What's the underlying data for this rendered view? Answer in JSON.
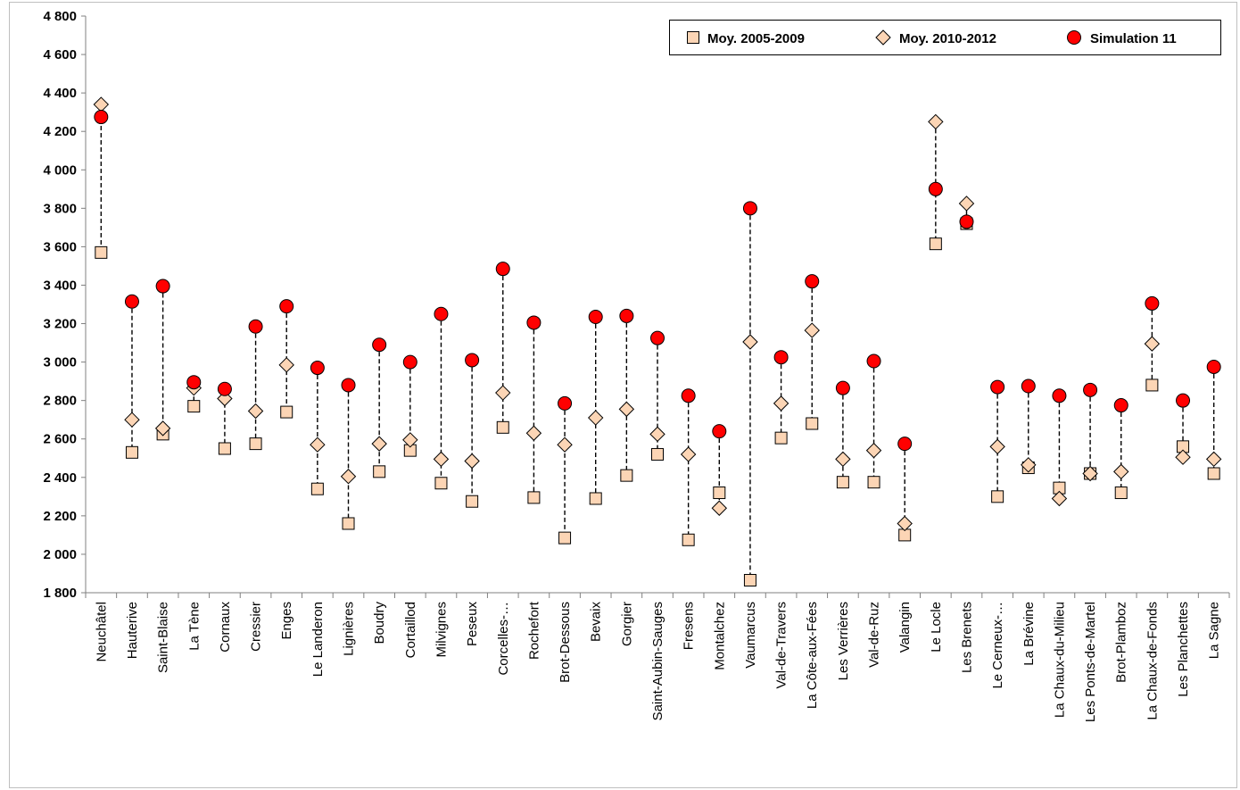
{
  "chart_data": {
    "type": "scatter",
    "title": "",
    "xlabel": "",
    "ylabel": "",
    "ylim": [
      1800,
      4800
    ],
    "y_tick_step": 200,
    "y_tick_labels": [
      "1 800",
      "2 000",
      "2 200",
      "2 400",
      "2 600",
      "2 800",
      "3 000",
      "3 200",
      "3 400",
      "3 600",
      "3 800",
      "4 000",
      "4 200",
      "4 400",
      "4 600",
      "4 800"
    ],
    "grid": false,
    "legend_position": "top-right",
    "connector": "dashed vertical line between min and max of the three values per category",
    "categories": [
      "Neuchâtel",
      "Hauterive",
      "Saint-Blaise",
      "La Tène",
      "Cornaux",
      "Cressier",
      "Enges",
      "Le Landeron",
      "Lignières",
      "Boudry",
      "Cortaillod",
      "Milvignes",
      "Peseux",
      "Corcelles-…",
      "Rochefort",
      "Brot-Dessous",
      "Bevaix",
      "Gorgier",
      "Saint-Aubin-Sauges",
      "Fresens",
      "Montalchez",
      "Vaumarcus",
      "Val-de-Travers",
      "La Côte-aux-Fées",
      "Les Verrières",
      "Val-de-Ruz",
      "Valangin",
      "Le Locle",
      "Les Brenets",
      "Le Cerneux-…",
      "La Brévine",
      "La Chaux-du-Milieu",
      "Les Ponts-de-Martel",
      "Brot-Plamboz",
      "La Chaux-de-Fonds",
      "Les Planchettes",
      "La Sagne"
    ],
    "series": [
      {
        "name": "Moy. 2005-2009",
        "marker": "square",
        "color": "#fcd5b5",
        "values": [
          3570,
          2530,
          2625,
          2770,
          2550,
          2575,
          2740,
          2340,
          2160,
          2430,
          2540,
          2370,
          2275,
          2660,
          2295,
          2085,
          2290,
          2410,
          2520,
          2075,
          2320,
          1865,
          2605,
          2680,
          2375,
          2375,
          2100,
          3615,
          3720,
          2300,
          2450,
          2345,
          2420,
          2320,
          2880,
          2560,
          2420
        ]
      },
      {
        "name": "Moy. 2010-2012",
        "marker": "diamond",
        "color": "#fcd5b5",
        "values": [
          4340,
          2700,
          2655,
          2865,
          2810,
          2745,
          2985,
          2570,
          2405,
          2575,
          2595,
          2495,
          2485,
          2840,
          2630,
          2570,
          2710,
          2755,
          2625,
          2520,
          2240,
          3105,
          2785,
          3165,
          2495,
          2540,
          2160,
          4250,
          3825,
          2560,
          2465,
          2290,
          2420,
          2430,
          3095,
          2505,
          2495
        ]
      },
      {
        "name": "Simulation 11",
        "marker": "circle",
        "color": "#ff0000",
        "values": [
          4275,
          3315,
          3395,
          2895,
          2860,
          3185,
          3290,
          2970,
          2880,
          3090,
          3000,
          3250,
          3010,
          3485,
          3205,
          2785,
          3235,
          3240,
          3125,
          2825,
          2640,
          3800,
          3025,
          3420,
          2865,
          3005,
          2575,
          3900,
          3730,
          2870,
          2875,
          2825,
          2855,
          2775,
          3305,
          2800,
          2975
        ]
      }
    ]
  }
}
